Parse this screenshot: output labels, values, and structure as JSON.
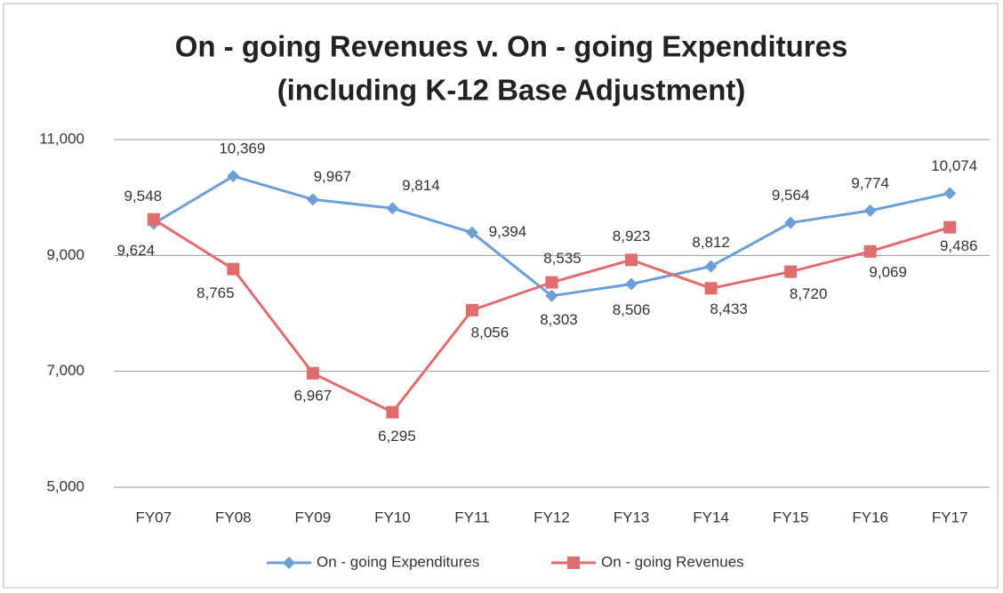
{
  "chart_data": {
    "type": "line",
    "title": "On - going Revenues v. On - going Expenditures",
    "subtitle": "(including K-12 Base Adjustment)",
    "categories": [
      "FY07",
      "FY08",
      "FY09",
      "FY10",
      "FY11",
      "FY12",
      "FY13",
      "FY14",
      "FY15",
      "FY16",
      "FY17"
    ],
    "series": [
      {
        "name": "On - going Expenditures",
        "color": "#6a9fd8",
        "marker": "diamond",
        "values": [
          9548,
          10369,
          9967,
          9814,
          9394,
          8303,
          8506,
          8812,
          9564,
          9774,
          10074
        ],
        "value_labels": [
          "9,548",
          "10,369",
          "9,967",
          "9,814",
          "9,394",
          "8,303",
          "8,506",
          "8,812",
          "9,564",
          "9,774",
          "10,074"
        ]
      },
      {
        "name": "On - going Revenues",
        "color": "#e06c6e",
        "marker": "square",
        "values": [
          9624,
          8765,
          6967,
          6295,
          8056,
          8535,
          8923,
          8433,
          8720,
          9069,
          9486
        ],
        "value_labels": [
          "9,624",
          "8,765",
          "6,967",
          "6,295",
          "8,056",
          "8,535",
          "8,923",
          "8,433",
          "8,720",
          "9,069",
          "9,486"
        ]
      }
    ],
    "ylim": [
      5000,
      11000
    ],
    "yticks": [
      {
        "value": 5000,
        "label": "5,000"
      },
      {
        "value": 7000,
        "label": "7,000"
      },
      {
        "value": 9000,
        "label": "9,000"
      },
      {
        "value": 11000,
        "label": "11,000"
      }
    ],
    "grid": true,
    "legend": "bottom"
  }
}
